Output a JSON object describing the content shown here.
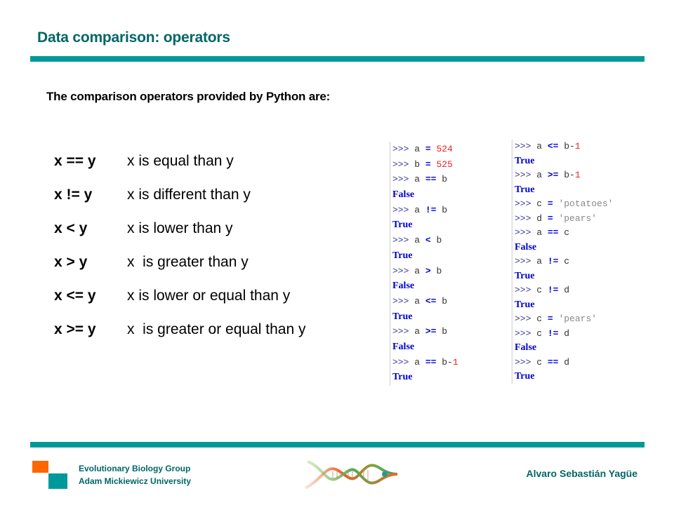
{
  "slide": {
    "title": "Data comparison: operators",
    "intro": "The comparison operators provided by Python are:",
    "colors": {
      "title": "#006666",
      "rule": "#009999",
      "accent_orange": "#ff6600",
      "output_keyword": "#0000cc",
      "number": "#ee2222",
      "string": "#888888"
    }
  },
  "operators": [
    {
      "code": "x == y",
      "desc": "x is equal than y"
    },
    {
      "code": "x != y",
      "desc": "x is different than y"
    },
    {
      "code": "x < y",
      "desc": "x is lower than y"
    },
    {
      "code": "x > y",
      "desc": "x  is greater than y"
    },
    {
      "code": "x <= y",
      "desc": "x is lower or equal than y"
    },
    {
      "code": "x >= y",
      "desc": "x  is greater or equal than y"
    }
  ],
  "console_left": [
    {
      "prompt": ">>> ",
      "parts": [
        {
          "t": "a ",
          "c": "cmd"
        },
        {
          "t": "=",
          "c": "kw"
        },
        {
          "t": " 524",
          "c": "num"
        }
      ]
    },
    {
      "prompt": ">>> ",
      "parts": [
        {
          "t": "b ",
          "c": "cmd"
        },
        {
          "t": "=",
          "c": "kw"
        },
        {
          "t": " 525",
          "c": "num"
        }
      ]
    },
    {
      "prompt": ">>> ",
      "parts": [
        {
          "t": "a ",
          "c": "cmd"
        },
        {
          "t": "==",
          "c": "kw"
        },
        {
          "t": " b",
          "c": "cmd"
        }
      ]
    },
    {
      "output": "False"
    },
    {
      "prompt": ">>> ",
      "parts": [
        {
          "t": "a ",
          "c": "cmd"
        },
        {
          "t": "!=",
          "c": "kw"
        },
        {
          "t": " b",
          "c": "cmd"
        }
      ]
    },
    {
      "output": "True"
    },
    {
      "prompt": ">>> ",
      "parts": [
        {
          "t": "a ",
          "c": "cmd"
        },
        {
          "t": "<",
          "c": "kw"
        },
        {
          "t": " b",
          "c": "cmd"
        }
      ]
    },
    {
      "output": "True"
    },
    {
      "prompt": ">>> ",
      "parts": [
        {
          "t": "a ",
          "c": "cmd"
        },
        {
          "t": ">",
          "c": "kw"
        },
        {
          "t": " b",
          "c": "cmd"
        }
      ]
    },
    {
      "output": "False"
    },
    {
      "prompt": ">>> ",
      "parts": [
        {
          "t": "a ",
          "c": "cmd"
        },
        {
          "t": "<=",
          "c": "kw"
        },
        {
          "t": " b",
          "c": "cmd"
        }
      ]
    },
    {
      "output": "True"
    },
    {
      "prompt": ">>> ",
      "parts": [
        {
          "t": "a ",
          "c": "cmd"
        },
        {
          "t": ">=",
          "c": "kw"
        },
        {
          "t": " b",
          "c": "cmd"
        }
      ]
    },
    {
      "output": "False"
    },
    {
      "prompt": ">>> ",
      "parts": [
        {
          "t": "a ",
          "c": "cmd"
        },
        {
          "t": "==",
          "c": "kw"
        },
        {
          "t": " b-",
          "c": "cmd"
        },
        {
          "t": "1",
          "c": "num"
        }
      ]
    },
    {
      "output": "True"
    }
  ],
  "console_right": [
    {
      "prompt": ">>> ",
      "parts": [
        {
          "t": "a ",
          "c": "cmd"
        },
        {
          "t": "<=",
          "c": "kw"
        },
        {
          "t": " b-",
          "c": "cmd"
        },
        {
          "t": "1",
          "c": "num"
        }
      ]
    },
    {
      "output": "True"
    },
    {
      "prompt": ">>> ",
      "parts": [
        {
          "t": "a ",
          "c": "cmd"
        },
        {
          "t": ">=",
          "c": "kw"
        },
        {
          "t": " b-",
          "c": "cmd"
        },
        {
          "t": "1",
          "c": "num"
        }
      ]
    },
    {
      "output": "True"
    },
    {
      "prompt": ">>> ",
      "parts": [
        {
          "t": "c ",
          "c": "cmd"
        },
        {
          "t": "=",
          "c": "kw"
        },
        {
          "t": " 'potatoes'",
          "c": "str"
        }
      ]
    },
    {
      "prompt": ">>> ",
      "parts": [
        {
          "t": "d ",
          "c": "cmd"
        },
        {
          "t": "=",
          "c": "kw"
        },
        {
          "t": " 'pears'",
          "c": "str"
        }
      ]
    },
    {
      "prompt": ">>> ",
      "parts": [
        {
          "t": "a ",
          "c": "cmd"
        },
        {
          "t": "==",
          "c": "kw"
        },
        {
          "t": " c",
          "c": "cmd"
        }
      ]
    },
    {
      "output": "False"
    },
    {
      "prompt": ">>> ",
      "parts": [
        {
          "t": "a ",
          "c": "cmd"
        },
        {
          "t": "!=",
          "c": "kw"
        },
        {
          "t": " c",
          "c": "cmd"
        }
      ]
    },
    {
      "output": "True"
    },
    {
      "prompt": ">>> ",
      "parts": [
        {
          "t": "c ",
          "c": "cmd"
        },
        {
          "t": "!=",
          "c": "kw"
        },
        {
          "t": " d",
          "c": "cmd"
        }
      ]
    },
    {
      "output": "True"
    },
    {
      "prompt": ">>> ",
      "parts": [
        {
          "t": "c ",
          "c": "cmd"
        },
        {
          "t": "=",
          "c": "kw"
        },
        {
          "t": " 'pears'",
          "c": "str"
        }
      ]
    },
    {
      "prompt": ">>> ",
      "parts": [
        {
          "t": "c ",
          "c": "cmd"
        },
        {
          "t": "!=",
          "c": "kw"
        },
        {
          "t": " d",
          "c": "cmd"
        }
      ]
    },
    {
      "output": "False"
    },
    {
      "prompt": ">>> ",
      "parts": [
        {
          "t": "c ",
          "c": "cmd"
        },
        {
          "t": "==",
          "c": "kw"
        },
        {
          "t": " d",
          "c": "cmd"
        }
      ]
    },
    {
      "output": "True"
    }
  ],
  "footer": {
    "org_line1": "Evolutionary Biology Group",
    "org_line2": "Adam Mickiewicz University",
    "author": "Alvaro Sebastián Yagüe",
    "logo_icon": "dna-fish-logo"
  }
}
